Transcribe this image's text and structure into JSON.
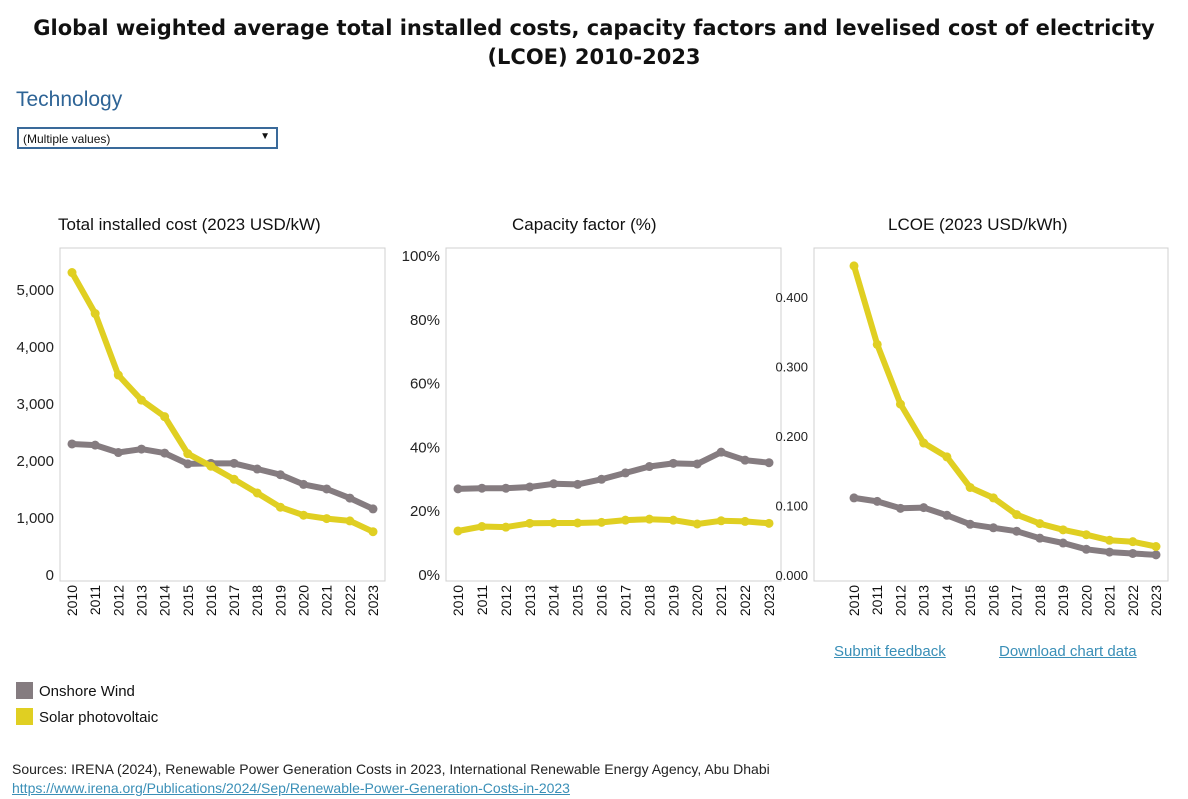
{
  "title": "Global weighted average total installed costs, capacity factors and levelised cost of electricity (LCOE) 2010-2023",
  "filter": {
    "label": "Technology",
    "value": "(Multiple values)"
  },
  "legend": [
    {
      "name": "Onshore Wind",
      "color": "#857c80"
    },
    {
      "name": "Solar photovoltaic",
      "color": "#e0cf22"
    }
  ],
  "links": {
    "feedback": "Submit feedback",
    "download": "Download chart data"
  },
  "sources": {
    "text": "Sources: IRENA (2024), Renewable Power Generation Costs in 2023, International Renewable Energy Agency, Abu Dhabi",
    "url": "https://www.irena.org/Publications/2024/Sep/Renewable-Power-Generation-Costs-in-2023"
  },
  "chart_data": [
    {
      "type": "line",
      "title": "Total installed cost (2023 USD/kW)",
      "x": [
        "2010",
        "2011",
        "2012",
        "2013",
        "2014",
        "2015",
        "2016",
        "2017",
        "2018",
        "2019",
        "2020",
        "2021",
        "2022",
        "2023"
      ],
      "ylim": [
        0,
        5600
      ],
      "yticks": [
        0,
        1000,
        2000,
        3000,
        4000,
        5000
      ],
      "ytick_labels": [
        "0",
        "1,000",
        "2,000",
        "3,000",
        "4,000",
        "5,000"
      ],
      "series": [
        {
          "name": "Onshore Wind",
          "color": "#857c80",
          "values": [
            2300,
            2280,
            2150,
            2210,
            2140,
            1950,
            1960,
            1960,
            1860,
            1760,
            1590,
            1510,
            1350,
            1160
          ]
        },
        {
          "name": "Solar photovoltaic",
          "color": "#e0cf22",
          "values": [
            5310,
            4590,
            3510,
            3070,
            2780,
            2130,
            1910,
            1680,
            1440,
            1190,
            1050,
            990,
            950,
            760
          ]
        }
      ]
    },
    {
      "type": "line",
      "title": "Capacity factor (%)",
      "x": [
        "2010",
        "2011",
        "2012",
        "2013",
        "2014",
        "2015",
        "2016",
        "2017",
        "2018",
        "2019",
        "2020",
        "2021",
        "2022",
        "2023"
      ],
      "ylim": [
        0,
        1
      ],
      "yticks": [
        0,
        0.2,
        0.4,
        0.6,
        0.8,
        1.0
      ],
      "ytick_labels": [
        "0%",
        "20%",
        "40%",
        "60%",
        "80%",
        "100%"
      ],
      "series": [
        {
          "name": "Onshore Wind",
          "color": "#857c80",
          "values": [
            0.27,
            0.272,
            0.272,
            0.276,
            0.286,
            0.284,
            0.3,
            0.32,
            0.34,
            0.35,
            0.348,
            0.385,
            0.36,
            0.352
          ]
        },
        {
          "name": "Solar photovoltaic",
          "color": "#e0cf22",
          "values": [
            0.138,
            0.152,
            0.15,
            0.162,
            0.163,
            0.163,
            0.165,
            0.172,
            0.175,
            0.172,
            0.16,
            0.17,
            0.168,
            0.162
          ]
        }
      ]
    },
    {
      "type": "line",
      "title": "LCOE (2023 USD/kWh)",
      "x": [
        "2010",
        "2011",
        "2012",
        "2013",
        "2014",
        "2015",
        "2016",
        "2017",
        "2018",
        "2019",
        "2020",
        "2021",
        "2022",
        "2023"
      ],
      "ylim": [
        0,
        0.465
      ],
      "yticks": [
        0,
        0.1,
        0.2,
        0.3,
        0.4
      ],
      "ytick_labels": [
        "0.000",
        "0.100",
        "0.200",
        "0.300",
        "0.400"
      ],
      "series": [
        {
          "name": "Onshore Wind",
          "color": "#857c80",
          "values": [
            0.111,
            0.106,
            0.096,
            0.097,
            0.086,
            0.073,
            0.068,
            0.063,
            0.053,
            0.046,
            0.037,
            0.033,
            0.031,
            0.029
          ]
        },
        {
          "name": "Solar photovoltaic",
          "color": "#e0cf22",
          "values": [
            0.445,
            0.332,
            0.246,
            0.19,
            0.17,
            0.126,
            0.111,
            0.087,
            0.074,
            0.065,
            0.058,
            0.05,
            0.048,
            0.041
          ]
        }
      ]
    }
  ]
}
